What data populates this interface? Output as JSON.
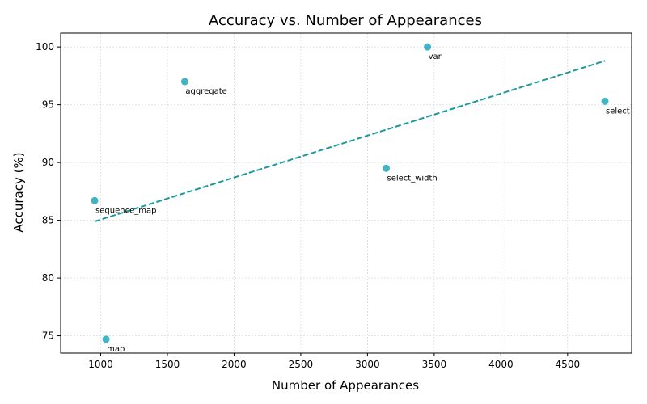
{
  "chart_data": {
    "type": "scatter",
    "title": "Accuracy vs. Number of Appearances",
    "xlabel": "Number of Appearances",
    "ylabel": "Accuracy (%)",
    "xlim": [
      700,
      4980
    ],
    "ylim": [
      73.5,
      101.2
    ],
    "xticks": [
      1000,
      1500,
      2000,
      2500,
      3000,
      3500,
      4000,
      4500
    ],
    "yticks": [
      75,
      80,
      85,
      90,
      95,
      100
    ],
    "grid": true,
    "points": [
      {
        "label": "sequence_map",
        "x": 955,
        "y": 86.7
      },
      {
        "label": "map",
        "x": 1040,
        "y": 74.7
      },
      {
        "label": "aggregate",
        "x": 1630,
        "y": 97.0
      },
      {
        "label": "select_width",
        "x": 3140,
        "y": 89.5
      },
      {
        "label": "var",
        "x": 3450,
        "y": 100.0
      },
      {
        "label": "select",
        "x": 4780,
        "y": 95.3
      }
    ],
    "trendline": {
      "x": [
        955,
        4780
      ],
      "y": [
        84.9,
        98.8
      ]
    },
    "colors": {
      "points": "#20a8b8",
      "trendline": "#1a9a9e",
      "grid": "#d0d0d0"
    }
  }
}
